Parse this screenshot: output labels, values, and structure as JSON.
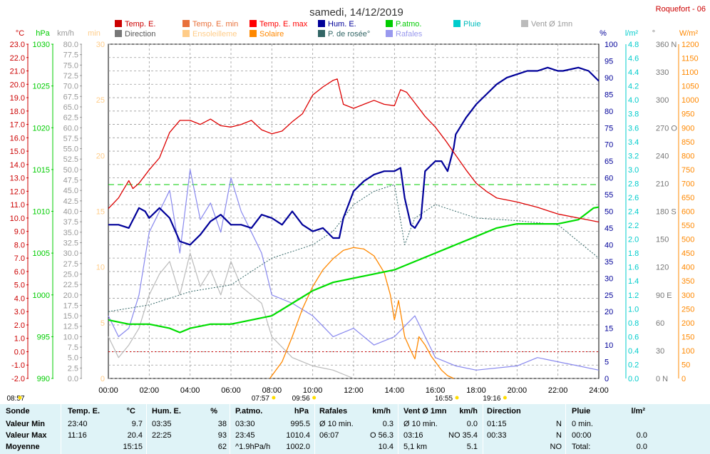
{
  "title": "samedi, 14/12/2019",
  "station": "Roquefort - 06",
  "legend": [
    {
      "label": "Temp. E.",
      "color": "#cc0000",
      "text_color": "#cc0000"
    },
    {
      "label": "Temp. E. min",
      "color": "#e8703a",
      "text_color": "#e8703a"
    },
    {
      "label": "Temp. E. max",
      "color": "#ff0000",
      "text_color": "#ff0000"
    },
    {
      "label": "Hum. E.",
      "color": "#000099",
      "text_color": "#000099"
    },
    {
      "label": "P.atmo.",
      "color": "#00cc00",
      "text_color": "#00cc00"
    },
    {
      "label": "Pluie",
      "color": "#00cccc",
      "text_color": "#00bbbb"
    },
    {
      "label": "Vent Ø 1mn",
      "color": "#bbbbbb",
      "text_color": "#999999"
    },
    {
      "label": "Direction",
      "color": "#777777",
      "text_color": "#555555"
    },
    {
      "label": "Ensoleilleme",
      "color": "#ffcc88",
      "text_color": "#ffcc88"
    },
    {
      "label": "Solaire",
      "color": "#ff8800",
      "text_color": "#ff8800"
    },
    {
      "label": "P. de rosée°",
      "color": "#336666",
      "text_color": "#336666"
    },
    {
      "label": "Rafales",
      "color": "#9999ee",
      "text_color": "#9999ee"
    }
  ],
  "axes": {
    "temp": {
      "unit": "°C",
      "color": "#cc0000",
      "ticks": [
        "23.0",
        "22.0",
        "21.0",
        "20.0",
        "19.0",
        "18.0",
        "17.0",
        "16.0",
        "15.0",
        "14.0",
        "13.0",
        "12.0",
        "11.0",
        "10.0",
        "9.0",
        "8.0",
        "7.0",
        "6.0",
        "5.0",
        "4.0",
        "3.0",
        "2.0",
        "1.0",
        "0.0",
        "-1.0",
        "-2.0"
      ],
      "range": [
        -2,
        23
      ]
    },
    "press": {
      "unit": "hPa",
      "color": "#00cc00",
      "ticks": [
        "1030",
        "1025",
        "1020",
        "1015",
        "1010",
        "1005",
        "1000",
        "995",
        "990"
      ],
      "range": [
        990,
        1030
      ]
    },
    "wind": {
      "unit": "km/h",
      "color": "#999999",
      "ticks": [
        "80.0",
        "77.5",
        "75.0",
        "72.5",
        "70.0",
        "67.5",
        "65.0",
        "62.5",
        "60.0",
        "57.5",
        "55.0",
        "52.5",
        "50.0",
        "47.5",
        "45.0",
        "42.5",
        "40.0",
        "37.5",
        "35.0",
        "32.5",
        "30.0",
        "27.5",
        "25.0",
        "22.5",
        "20.0",
        "17.5",
        "15.0",
        "12.5",
        "10.0",
        "7.5",
        "5.0",
        "2.5",
        "0.0"
      ],
      "range": [
        0,
        80
      ]
    },
    "sun": {
      "unit": "min",
      "color": "#ffcc88",
      "ticks": [
        "30",
        "25",
        "20",
        "15",
        "10",
        "5",
        "0"
      ],
      "range": [
        0,
        30
      ]
    },
    "hum": {
      "unit": "%",
      "color": "#000099",
      "ticks": [
        "100",
        "95",
        "90",
        "85",
        "80",
        "75",
        "70",
        "65",
        "60",
        "55",
        "50",
        "45",
        "40",
        "35",
        "30",
        "25",
        "20",
        "15",
        "10",
        "5",
        "0"
      ],
      "range": [
        0,
        100
      ]
    },
    "rain": {
      "unit": "l/m²",
      "color": "#00cccc",
      "ticks": [
        "4.8",
        "4.6",
        "4.4",
        "4.2",
        "4.0",
        "3.8",
        "3.6",
        "3.4",
        "3.2",
        "3.0",
        "2.8",
        "2.6",
        "2.4",
        "2.2",
        "2.0",
        "1.8",
        "1.6",
        "1.4",
        "1.2",
        "1.0",
        "0.8",
        "0.6",
        "0.4",
        "0.2",
        "0.0"
      ],
      "range": [
        0,
        5
      ]
    },
    "dir": {
      "unit": "°",
      "color": "#777777",
      "ticks": [
        "360 N",
        "330",
        "300",
        "270 O",
        "240",
        "210",
        "180 S",
        "150",
        "120",
        "90 E",
        "60",
        "30",
        "0 N"
      ],
      "range": [
        0,
        360
      ]
    },
    "solar": {
      "unit": "W/m²",
      "color": "#ff8800",
      "ticks": [
        "1200",
        "1150",
        "1100",
        "1050",
        "1000",
        "950",
        "900",
        "850",
        "800",
        "750",
        "700",
        "650",
        "600",
        "550",
        "500",
        "450",
        "400",
        "350",
        "300",
        "250",
        "200",
        "150",
        "100",
        "50",
        "0"
      ],
      "range": [
        0,
        1200
      ]
    }
  },
  "x_ticks": [
    "00:00",
    "02:00",
    "04:00",
    "06:00",
    "08:00",
    "10:00",
    "12:00",
    "14:00",
    "16:00",
    "18:00",
    "20:00",
    "22:00",
    "24:00"
  ],
  "sun_events": [
    {
      "label": "08:57",
      "hour": null
    },
    {
      "label": "07:57",
      "hour": 7.95
    },
    {
      "label": "09:56",
      "hour": 9.93
    },
    {
      "label": "16:55",
      "hour": 16.92
    },
    {
      "label": "19:16",
      "hour": 19.27
    }
  ],
  "chart_data": {
    "type": "line",
    "x_unit": "hour of day",
    "xlim": [
      0,
      24
    ],
    "series": [
      {
        "name": "Temp. E.",
        "axis": "temp",
        "x": [
          0,
          0.5,
          1,
          1.2,
          1.5,
          2,
          2.5,
          3,
          3.5,
          4,
          4.5,
          5,
          5.5,
          6,
          6.5,
          7,
          7.5,
          8,
          8.5,
          9,
          9.5,
          10,
          10.5,
          11,
          11.2,
          11.5,
          12,
          12.5,
          13,
          13.5,
          14,
          14.3,
          14.6,
          15,
          15.5,
          16,
          16.5,
          17,
          17.5,
          18,
          18.5,
          19,
          20,
          21,
          22,
          23,
          24
        ],
        "y": [
          10.7,
          11.5,
          12.8,
          12.2,
          12.6,
          13.6,
          14.5,
          16.4,
          17.3,
          17.3,
          17.0,
          17.4,
          16.9,
          16.8,
          17.0,
          17.3,
          16.6,
          16.3,
          16.5,
          17.2,
          17.8,
          19.2,
          19.8,
          20.3,
          20.4,
          18.5,
          18.2,
          18.5,
          18.8,
          18.5,
          18.4,
          19.6,
          19.4,
          18.6,
          17.6,
          16.8,
          15.8,
          14.7,
          13.6,
          12.6,
          12.0,
          11.5,
          11.2,
          10.8,
          10.3,
          10.0,
          9.7
        ]
      },
      {
        "name": "Hum. E.",
        "axis": "hum",
        "x": [
          0,
          0.5,
          1,
          1.5,
          1.8,
          2,
          2.5,
          3,
          3.5,
          4,
          4.5,
          5,
          5.5,
          6,
          6.5,
          7,
          7.5,
          8,
          8.5,
          9,
          9.5,
          10,
          10.5,
          11,
          11.3,
          11.5,
          12,
          12.5,
          13,
          13.5,
          14,
          14.3,
          14.5,
          14.8,
          15,
          15.3,
          15.5,
          16,
          16.3,
          16.6,
          16.9,
          17,
          17.5,
          18,
          18.5,
          19,
          19.5,
          20,
          20.5,
          21,
          21.5,
          22,
          22.25,
          23,
          23.5,
          24
        ],
        "y": [
          46,
          46,
          45,
          51,
          50,
          48,
          51,
          48,
          41,
          40,
          43,
          47,
          49,
          46,
          46,
          45,
          49,
          48,
          46,
          50,
          46,
          44,
          45,
          42,
          42,
          48,
          56,
          59,
          61,
          62,
          62,
          63,
          54,
          46,
          45,
          48,
          62,
          65,
          65,
          62,
          69,
          73,
          78,
          82,
          85,
          88,
          90,
          91,
          92,
          92,
          93,
          92,
          92,
          93,
          92,
          89
        ]
      },
      {
        "name": "P.atmo.",
        "axis": "press",
        "x": [
          0,
          1,
          2,
          3,
          3.5,
          4,
          5,
          6,
          7,
          8,
          9,
          10,
          11,
          12,
          13,
          14,
          15,
          16,
          17,
          18,
          19,
          20,
          21,
          22,
          23,
          23.75,
          24
        ],
        "y": [
          997.0,
          996.5,
          996.5,
          996.0,
          995.5,
          996.0,
          996.5,
          996.5,
          997.0,
          997.5,
          999.0,
          1000.5,
          1001.5,
          1002.0,
          1002.5,
          1003.0,
          1004.0,
          1005.0,
          1006.0,
          1007.0,
          1008.0,
          1008.5,
          1008.5,
          1008.5,
          1009.0,
          1010.4,
          1010.5
        ]
      },
      {
        "name": "P. de rosée°",
        "axis": "temp",
        "x": [
          0,
          2,
          4,
          6,
          7,
          8,
          9,
          10,
          11,
          12,
          13,
          14,
          14.5,
          15,
          16,
          17,
          18,
          20,
          22,
          24
        ],
        "y": [
          3.0,
          3.5,
          4.5,
          5.0,
          6.0,
          7.0,
          7.5,
          8.0,
          9.0,
          11.0,
          12.0,
          12.5,
          8.0,
          10.0,
          11.0,
          10.5,
          10.0,
          9.8,
          9.5,
          7.0
        ]
      },
      {
        "name": "Solaire",
        "axis": "solar",
        "x": [
          7.9,
          8.5,
          9,
          9.5,
          10,
          10.5,
          11,
          11.5,
          12,
          12.5,
          13,
          13.5,
          13.8,
          14,
          14.2,
          14.5,
          14.8,
          15,
          15.2,
          15.5,
          15.8,
          16,
          16.3,
          16.6,
          16.9
        ],
        "y": [
          0,
          60,
          150,
          250,
          330,
          390,
          430,
          460,
          470,
          465,
          440,
          380,
          300,
          210,
          280,
          150,
          100,
          70,
          150,
          120,
          80,
          60,
          30,
          10,
          0
        ]
      },
      {
        "name": "Rafales",
        "axis": "wind",
        "x": [
          0,
          0.5,
          1,
          1.5,
          2,
          2.5,
          3,
          3.5,
          4,
          4.5,
          5,
          5.5,
          6,
          6.5,
          7,
          7.5,
          8,
          9,
          10,
          11,
          12,
          13,
          14,
          15,
          16,
          17,
          18,
          20,
          21,
          22,
          23,
          24
        ],
        "y": [
          15,
          10,
          12,
          20,
          35,
          40,
          45,
          30,
          50,
          38,
          42,
          35,
          48,
          40,
          35,
          30,
          20,
          18,
          15,
          10,
          12,
          8,
          10,
          15,
          5,
          3,
          2,
          3,
          5,
          4,
          3,
          2
        ]
      },
      {
        "name": "Vent Ø 1mn",
        "axis": "wind",
        "x": [
          0,
          0.5,
          1,
          1.5,
          2,
          2.5,
          3,
          3.5,
          4,
          4.5,
          5,
          5.5,
          6,
          6.5,
          7,
          7.5,
          8,
          9,
          10,
          11,
          12
        ],
        "y": [
          10,
          5,
          8,
          12,
          20,
          25,
          28,
          20,
          30,
          22,
          26,
          20,
          28,
          22,
          20,
          18,
          10,
          5,
          3,
          2,
          0
        ]
      }
    ]
  },
  "table": {
    "headers": [
      "Sonde",
      "Temp. E.",
      "°C",
      "Hum. E.",
      "%",
      "P.atmo.",
      "hPa",
      "Rafales",
      "km/h",
      "Vent Ø 1mn",
      "km/h",
      "Direction",
      "",
      "Pluie",
      "l/m²"
    ],
    "rows": [
      {
        "label": "Valeur Min",
        "c": [
          "23:40",
          "9.7",
          "03:35",
          "38",
          "03:30",
          "995.5",
          "Ø 10 min.",
          "0.3",
          "Ø 10 min.",
          "0.0",
          "01:15",
          "N",
          "0 min.",
          ""
        ]
      },
      {
        "label": "Valeur Max",
        "c": [
          "11:16",
          "20.4",
          "22:25",
          "93",
          "23:45",
          "1010.4",
          "06:07",
          "O 56.3",
          "03:16",
          "NO 35.4",
          "00:33",
          "N",
          "00:00",
          "0.0"
        ]
      },
      {
        "label": "Moyenne",
        "c": [
          "",
          "15:15",
          "",
          "62",
          "^1.9hPa/h",
          "1002.0",
          "",
          "10.4",
          "5,1 km",
          "5.1",
          "",
          "NO",
          "Total:",
          "0.0"
        ]
      }
    ]
  }
}
